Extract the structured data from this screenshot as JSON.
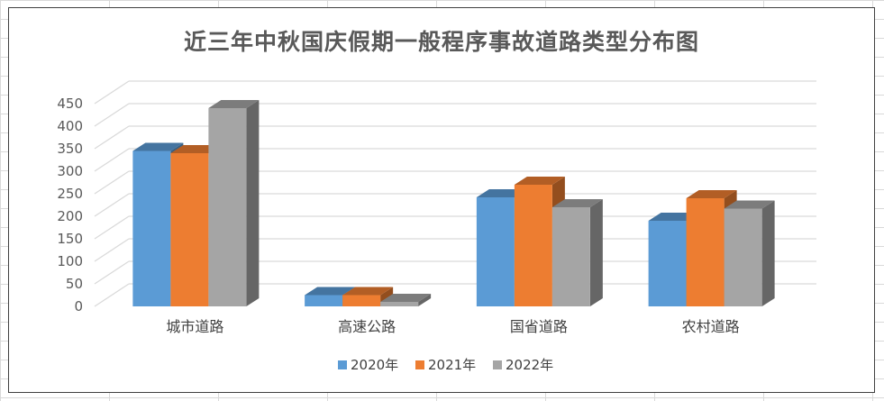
{
  "chart_data": {
    "type": "bar",
    "title": "近三年中秋国庆假期一般程序事故道路类型分布图",
    "categories": [
      "城市道路",
      "高速公路",
      "国省道路",
      "农村道路"
    ],
    "series": [
      {
        "name": "2020年",
        "values": [
          345,
          25,
          242,
          190
        ],
        "color": "#5b9bd5"
      },
      {
        "name": "2021年",
        "values": [
          340,
          25,
          270,
          240
        ],
        "color": "#ed7d31"
      },
      {
        "name": "2022年",
        "values": [
          440,
          10,
          220,
          217
        ],
        "color": "#a5a5a5"
      }
    ],
    "ylim": [
      0,
      450
    ],
    "yticks": [
      0,
      50,
      100,
      150,
      200,
      250,
      300,
      350,
      400,
      450
    ],
    "grid": true,
    "legend_position": "bottom"
  }
}
